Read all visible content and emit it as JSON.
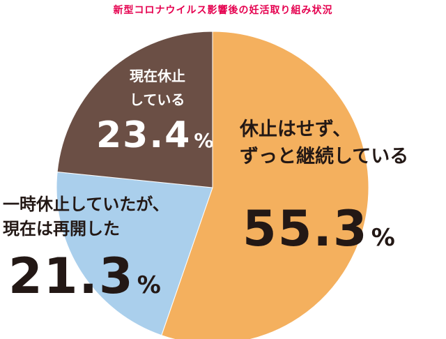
{
  "chart_data": {
    "type": "pie",
    "title": "新型コロナウイルス影響後の妊活取り組み状況",
    "unit": "%",
    "slices": [
      {
        "label_lines": [
          "休止はせず、",
          "ずっと継続している"
        ],
        "value_text": "55.3",
        "value": 55.3,
        "color": "#f4b05e"
      },
      {
        "label_lines": [
          "一時休止していたが、",
          "現在は再開した"
        ],
        "value_text": "21.3",
        "value": 21.3,
        "color": "#aacfec"
      },
      {
        "label_lines": [
          "現在休止",
          "している"
        ],
        "value_text": "23.4",
        "value": 23.4,
        "color": "#6b4f45"
      }
    ]
  },
  "colors": {
    "title": "#e5004f",
    "text_dark": "#231815",
    "text_light": "#ffffff"
  }
}
